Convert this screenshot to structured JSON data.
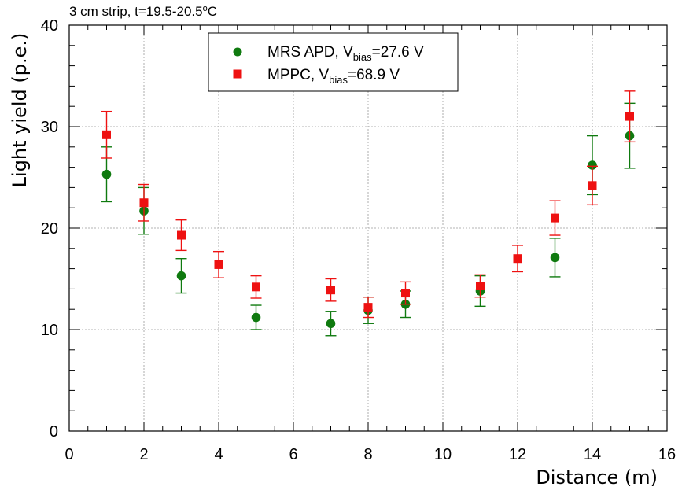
{
  "chart_data": {
    "type": "scatter",
    "title": "3 cm strip, t=19.5-20.5",
    "title_sup": "o",
    "title_suffix": "C",
    "xlabel": "Distance (m)",
    "ylabel": "Light yield (p.e.)",
    "xlim": [
      0,
      16
    ],
    "ylim": [
      0,
      40
    ],
    "x_ticks": [
      0,
      2,
      4,
      6,
      8,
      10,
      12,
      14,
      16
    ],
    "y_ticks": [
      0,
      10,
      20,
      30,
      40
    ],
    "grid": true,
    "legend_placement": "top-center",
    "series": [
      {
        "name": "MRS APD, V",
        "name_sub": "bias",
        "name_suffix": "=27.6 V",
        "marker": "circle",
        "color": "#0f7a0f",
        "points": [
          {
            "x": 1,
            "y": 25.3,
            "yerr_low": 2.7,
            "yerr_high": 2.7
          },
          {
            "x": 2,
            "y": 21.7,
            "yerr_low": 2.3,
            "yerr_high": 2.3
          },
          {
            "x": 3,
            "y": 15.3,
            "yerr_low": 1.7,
            "yerr_high": 1.7
          },
          {
            "x": 5,
            "y": 11.2,
            "yerr_low": 1.2,
            "yerr_high": 1.2
          },
          {
            "x": 7,
            "y": 10.6,
            "yerr_low": 1.2,
            "yerr_high": 1.2
          },
          {
            "x": 8,
            "y": 11.9,
            "yerr_low": 1.3,
            "yerr_high": 1.3
          },
          {
            "x": 9,
            "y": 12.5,
            "yerr_low": 1.3,
            "yerr_high": 1.3
          },
          {
            "x": 11,
            "y": 13.8,
            "yerr_low": 1.5,
            "yerr_high": 1.5
          },
          {
            "x": 13,
            "y": 17.1,
            "yerr_low": 1.9,
            "yerr_high": 1.9
          },
          {
            "x": 14,
            "y": 26.2,
            "yerr_low": 2.9,
            "yerr_high": 2.9
          },
          {
            "x": 15,
            "y": 29.1,
            "yerr_low": 3.2,
            "yerr_high": 3.2
          }
        ]
      },
      {
        "name": "MPPC, V",
        "name_sub": "bias",
        "name_suffix": "=68.9 V",
        "marker": "square",
        "color": "#ee1111",
        "points": [
          {
            "x": 1,
            "y": 29.2,
            "yerr_low": 2.3,
            "yerr_high": 2.3
          },
          {
            "x": 2,
            "y": 22.5,
            "yerr_low": 1.8,
            "yerr_high": 1.8
          },
          {
            "x": 3,
            "y": 19.3,
            "yerr_low": 1.5,
            "yerr_high": 1.5
          },
          {
            "x": 4,
            "y": 16.4,
            "yerr_low": 1.3,
            "yerr_high": 1.3
          },
          {
            "x": 5,
            "y": 14.2,
            "yerr_low": 1.1,
            "yerr_high": 1.1
          },
          {
            "x": 7,
            "y": 13.9,
            "yerr_low": 1.1,
            "yerr_high": 1.1
          },
          {
            "x": 8,
            "y": 12.2,
            "yerr_low": 1.0,
            "yerr_high": 1.0
          },
          {
            "x": 9,
            "y": 13.6,
            "yerr_low": 1.1,
            "yerr_high": 1.1
          },
          {
            "x": 11,
            "y": 14.3,
            "yerr_low": 1.1,
            "yerr_high": 1.1
          },
          {
            "x": 12,
            "y": 17.0,
            "yerr_low": 1.3,
            "yerr_high": 1.3
          },
          {
            "x": 13,
            "y": 21.0,
            "yerr_low": 1.7,
            "yerr_high": 1.7
          },
          {
            "x": 14,
            "y": 24.2,
            "yerr_low": 1.9,
            "yerr_high": 1.9
          },
          {
            "x": 15,
            "y": 31.0,
            "yerr_low": 2.5,
            "yerr_high": 2.5
          }
        ]
      }
    ]
  }
}
